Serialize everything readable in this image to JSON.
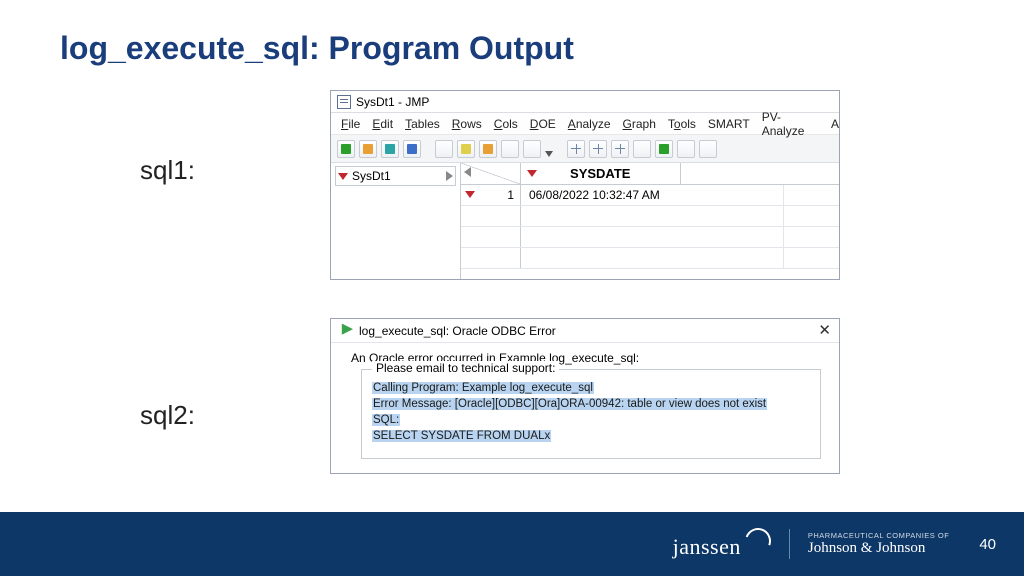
{
  "slide": {
    "title": "log_execute_sql: Program Output",
    "label1": "sql1:",
    "label2": "sql2:",
    "pagenum": "40",
    "title_color": "#1a3d7c",
    "footer_bg": "#0d3766"
  },
  "jmp": {
    "window_title": "SysDt1 - JMP",
    "menus": [
      "File",
      "Edit",
      "Tables",
      "Rows",
      "Cols",
      "DOE",
      "Analyze",
      "Graph",
      "Tools",
      "SMART",
      "PV-Analyze",
      "A"
    ],
    "side_label": "SysDt1",
    "col_header": "SYSDATE",
    "row_num": "1",
    "cell_value": "06/08/2022 10:32:47 AM"
  },
  "err": {
    "title": "log_execute_sql: Oracle ODBC Error",
    "intro": "An Oracle error occurred in Example log_execute_sql:",
    "legend": "Please email to technical support:",
    "line1": "Calling Program: Example log_execute_sql",
    "line2": "Error Message:   [Oracle][ODBC][Ora]ORA-00942: table or view does not exist",
    "line3": "SQL:",
    "line4": "SELECT SYSDATE FROM DUALx",
    "highlight_bg": "#b8d4f0"
  },
  "brand": {
    "name": "janssen",
    "tagline_small": "PHARMACEUTICAL COMPANIES OF",
    "tagline_script": "Johnson & Johnson"
  }
}
